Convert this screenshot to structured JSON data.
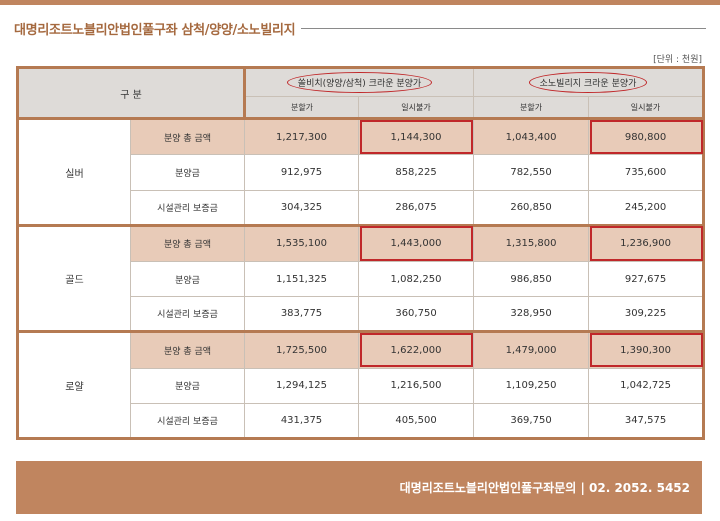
{
  "title": "대명리조트노블리안법인풀구좌 삼척/양양/소노빌리지",
  "unit": "[단위 : 천원]",
  "header": {
    "category": "구 분",
    "group1": "쏠비치(양양/삼척) 크라운 분양가",
    "group2": "소노빌리지 크라운 분양가",
    "sub_installment": "분할가",
    "sub_lumpsum": "일시불가"
  },
  "groups": [
    {
      "grade": "실버",
      "rows": [
        {
          "label": "분양 총 금액",
          "values": [
            "1,217,300",
            "1,144,300",
            "1,043,400",
            "980,800"
          ]
        },
        {
          "label": "분양금",
          "values": [
            "912,975",
            "858,225",
            "782,550",
            "735,600"
          ]
        },
        {
          "label": "시설관리 보증금",
          "values": [
            "304,325",
            "286,075",
            "260,850",
            "245,200"
          ]
        }
      ]
    },
    {
      "grade": "골드",
      "rows": [
        {
          "label": "분양 총 금액",
          "values": [
            "1,535,100",
            "1,443,000",
            "1,315,800",
            "1,236,900"
          ]
        },
        {
          "label": "분양금",
          "values": [
            "1,151,325",
            "1,082,250",
            "986,850",
            "927,675"
          ]
        },
        {
          "label": "시설관리 보증금",
          "values": [
            "383,775",
            "360,750",
            "328,950",
            "309,225"
          ]
        }
      ]
    },
    {
      "grade": "로얄",
      "rows": [
        {
          "label": "분양 총 금액",
          "values": [
            "1,725,500",
            "1,622,000",
            "1,479,000",
            "1,390,300"
          ]
        },
        {
          "label": "분양금",
          "values": [
            "1,294,125",
            "1,216,500",
            "1,109,250",
            "1,042,725"
          ]
        },
        {
          "label": "시설관리 보증금",
          "values": [
            "431,375",
            "405,500",
            "369,750",
            "347,575"
          ]
        }
      ]
    }
  ],
  "footer": "대명리조트노블리안법인풀구좌문의 | 02. 2052. 5452",
  "colors": {
    "brand": "#c0855f",
    "highlight_row": "#e8cbb8",
    "accent_red": "#c0282a",
    "header_gray": "#dedbd8"
  }
}
